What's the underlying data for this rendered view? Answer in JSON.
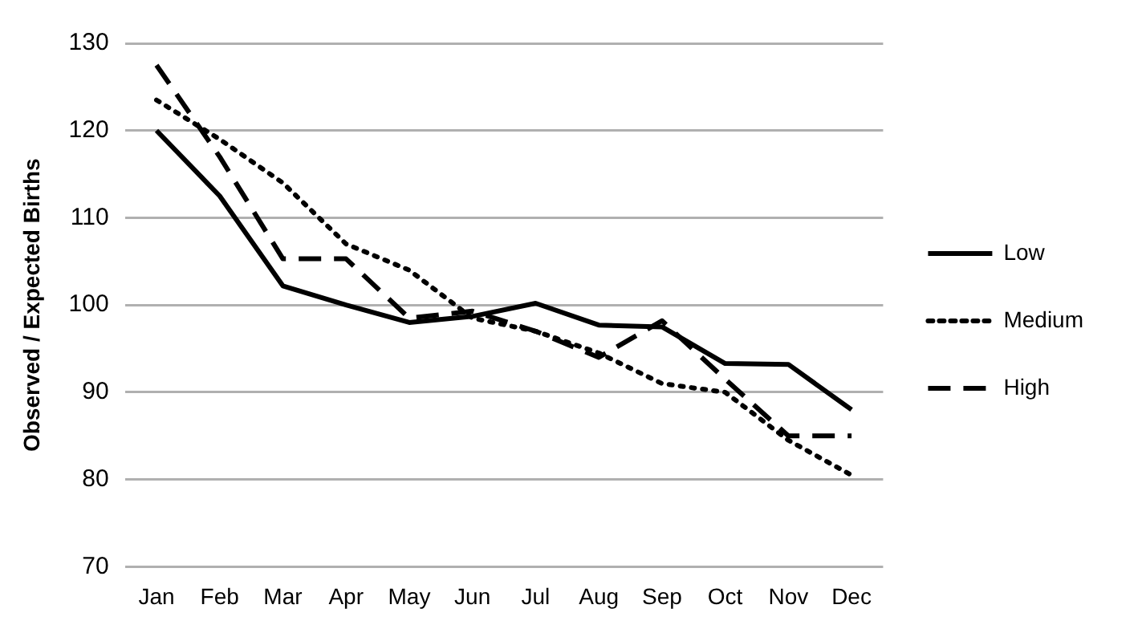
{
  "chart_data": {
    "type": "line",
    "ylabel": "Observed / Expected Births",
    "categories": [
      "Jan",
      "Feb",
      "Mar",
      "Apr",
      "May",
      "Jun",
      "Jul",
      "Aug",
      "Sep",
      "Oct",
      "Nov",
      "Dec"
    ],
    "series": [
      {
        "name": "Low",
        "color": "#000000",
        "line_style": "solid",
        "values": [
          120,
          112.5,
          102.2,
          100,
          98,
          98.7,
          100.2,
          97.7,
          97.5,
          93.3,
          93.2,
          88
        ]
      },
      {
        "name": "Medium",
        "color": "#000000",
        "line_style": "dotted",
        "values": [
          123.5,
          119,
          114,
          107,
          104,
          98.5,
          97,
          94.5,
          91,
          90,
          84.5,
          80.5
        ]
      },
      {
        "name": "High",
        "color": "#000000",
        "line_style": "dashed",
        "values": [
          127.5,
          117,
          105.3,
          105.3,
          98.5,
          99.3,
          97,
          94,
          98.2,
          91.5,
          85,
          85
        ]
      }
    ],
    "ylim": [
      70,
      130
    ],
    "yticks": [
      70,
      80,
      90,
      100,
      110,
      120,
      130
    ],
    "grid": "y",
    "legend": "right",
    "marker": "none"
  }
}
